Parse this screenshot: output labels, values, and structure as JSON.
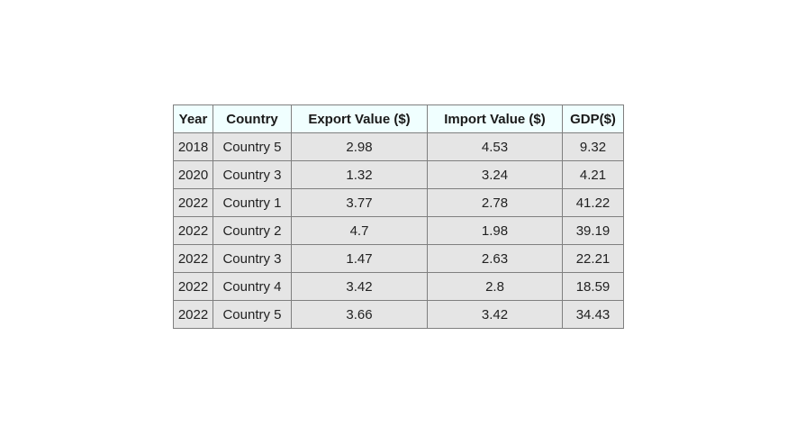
{
  "chart_data": {
    "type": "table",
    "columns": [
      "Year",
      "Country",
      "Export Value ($)",
      "Import Value ($)",
      "GDP($)"
    ],
    "rows": [
      [
        "2018",
        "Country 5",
        "2.98",
        "4.53",
        "9.32"
      ],
      [
        "2020",
        "Country 3",
        "1.32",
        "3.24",
        "4.21"
      ],
      [
        "2022",
        "Country 1",
        "3.77",
        "2.78",
        "41.22"
      ],
      [
        "2022",
        "Country 2",
        "4.7",
        "1.98",
        "39.19"
      ],
      [
        "2022",
        "Country 3",
        "1.47",
        "2.63",
        "22.21"
      ],
      [
        "2022",
        "Country 4",
        "3.42",
        "2.8",
        "18.59"
      ],
      [
        "2022",
        "Country 5",
        "3.66",
        "3.42",
        "34.43"
      ]
    ]
  },
  "colors": {
    "header_background": "#f0ffff",
    "cell_background": "#e5e5e5",
    "border": "#7f7f7f"
  }
}
